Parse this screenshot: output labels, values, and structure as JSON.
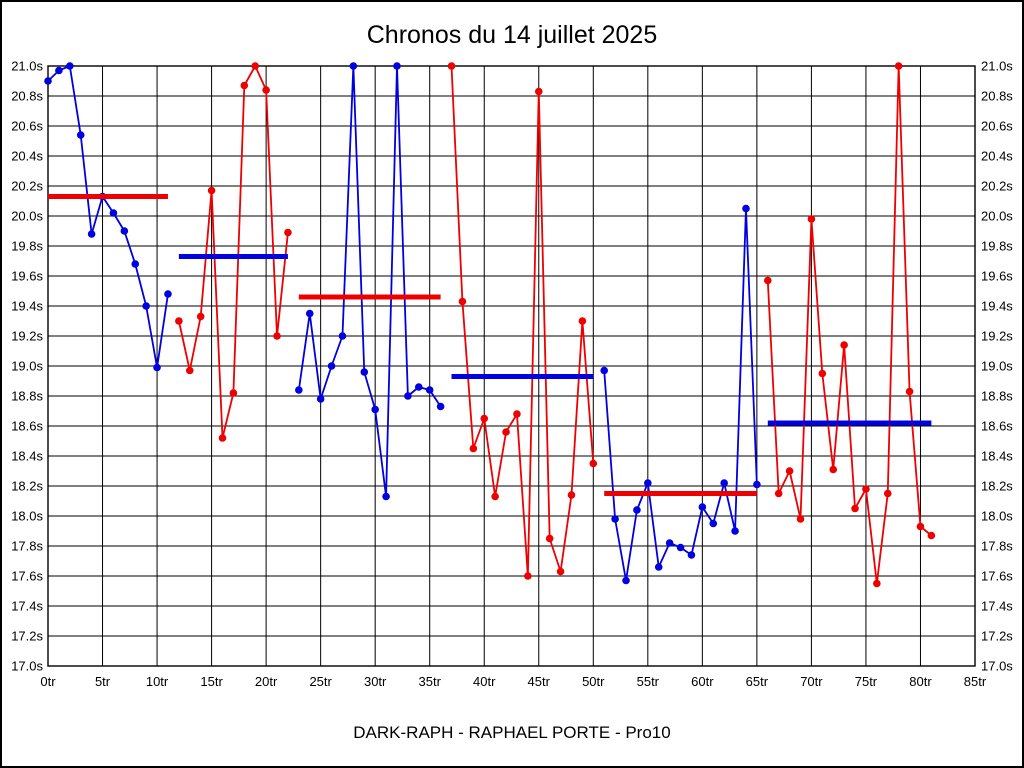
{
  "chart_data": {
    "type": "line",
    "title": "Chronos du 14 juillet 2025",
    "subtitle": "DARK-RAPH - RAPHAEL PORTE - Pro10",
    "x_unit": "tr",
    "y_unit": "s",
    "xlim": [
      0,
      85
    ],
    "ylim": [
      17.0,
      21.0
    ],
    "x_tick_step": 5,
    "y_tick_step": 0.2,
    "grid": true,
    "legend": "none",
    "x_tick_labels": [
      "0tr",
      "5tr",
      "10tr",
      "15tr",
      "20tr",
      "25tr",
      "30tr",
      "35tr",
      "40tr",
      "45tr",
      "50tr",
      "55tr",
      "60tr",
      "65tr",
      "70tr",
      "75tr",
      "80tr",
      "85tr"
    ],
    "y_tick_labels": [
      "17.0s",
      "17.2s",
      "17.4s",
      "17.6s",
      "17.8s",
      "18.0s",
      "18.2s",
      "18.4s",
      "18.6s",
      "18.8s",
      "19.0s",
      "19.2s",
      "19.4s",
      "19.6s",
      "19.8s",
      "20.0s",
      "20.2s",
      "20.4s",
      "20.6s",
      "20.8s",
      "21.0s"
    ],
    "colors": {
      "blue": "#0000E0",
      "red": "#EF0000",
      "grid": "#000000",
      "background": "#FFFFFF"
    },
    "segments": [
      {
        "name": "stint-1",
        "color": "blue",
        "start_lap": 0,
        "values": [
          20.9,
          20.97,
          21.0,
          20.54,
          19.88,
          20.13,
          20.02,
          19.9,
          19.68,
          19.4,
          18.99,
          19.48
        ]
      },
      {
        "name": "stint-2",
        "color": "red",
        "start_lap": 12,
        "values": [
          19.3,
          18.97,
          19.33,
          20.17,
          18.52,
          18.82,
          20.87,
          21.0,
          20.84,
          19.2,
          19.89
        ]
      },
      {
        "name": "stint-3",
        "color": "blue",
        "start_lap": 23,
        "values": [
          18.84,
          19.35,
          18.78,
          19.0,
          19.2,
          21.0,
          18.96,
          18.71,
          18.13,
          21.0,
          18.8,
          18.86,
          18.84,
          18.73
        ]
      },
      {
        "name": "stint-4",
        "color": "red",
        "start_lap": 37,
        "values": [
          21.0,
          19.43,
          18.45,
          18.65,
          18.13,
          18.56,
          18.68,
          17.6,
          20.83,
          17.85,
          17.63,
          18.14,
          19.3,
          18.35
        ]
      },
      {
        "name": "stint-5",
        "color": "blue",
        "start_lap": 51,
        "values": [
          18.97,
          17.98,
          17.57,
          18.04,
          18.22,
          17.66,
          17.82,
          17.79,
          17.74,
          18.06,
          17.95,
          18.22,
          17.9,
          20.05,
          18.21
        ]
      },
      {
        "name": "stint-6",
        "color": "red",
        "start_lap": 66,
        "values": [
          19.57,
          18.15,
          18.3,
          17.98,
          19.98,
          18.95,
          18.31,
          19.14,
          18.05,
          18.18,
          17.55,
          18.15,
          21.0,
          18.83,
          17.93,
          17.87
        ]
      }
    ],
    "average_lines": [
      {
        "color": "red",
        "value": 20.13,
        "from_lap": 0,
        "to_lap": 11
      },
      {
        "color": "blue",
        "value": 19.73,
        "from_lap": 12,
        "to_lap": 22
      },
      {
        "color": "red",
        "value": 19.46,
        "from_lap": 23,
        "to_lap": 36
      },
      {
        "color": "blue",
        "value": 18.93,
        "from_lap": 37,
        "to_lap": 50
      },
      {
        "color": "red",
        "value": 18.15,
        "from_lap": 51,
        "to_lap": 65
      },
      {
        "color": "blue",
        "value": 18.62,
        "from_lap": 66,
        "to_lap": 81
      }
    ]
  }
}
